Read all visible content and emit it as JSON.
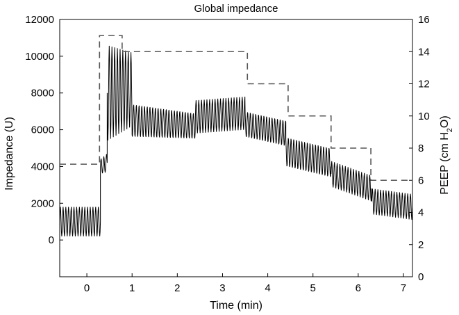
{
  "chart_data": {
    "type": "line",
    "title": "Global impedance",
    "xlabel": "Time (min)",
    "ylabel_left": "Impedance (U)",
    "ylabel_right_parts": {
      "prefix": "PEEP (cm H",
      "subscript": "2",
      "suffix": "O)"
    },
    "xlim": [
      -0.6,
      7.2
    ],
    "ylim_left": [
      -2000,
      12000
    ],
    "ylim_right": [
      0,
      16
    ],
    "x_ticks": [
      0,
      1,
      2,
      3,
      4,
      5,
      6,
      7
    ],
    "x_tick_labels": [
      "0",
      "1",
      "2",
      "3",
      "4",
      "5",
      "6",
      "7"
    ],
    "y_left_ticks": [
      0,
      2000,
      4000,
      6000,
      8000,
      10000,
      12000
    ],
    "y_left_tick_labels": [
      "0",
      "2000",
      "4000",
      "6000",
      "8000",
      "10000",
      "12000"
    ],
    "y_right_ticks": [
      0,
      2,
      4,
      6,
      8,
      10,
      12,
      14,
      16
    ],
    "y_right_tick_labels": [
      "0",
      "2",
      "4",
      "6",
      "8",
      "10",
      "12",
      "14",
      "16"
    ],
    "grid": false,
    "series": [
      {
        "name": "Global impedance",
        "axis": "left",
        "style": "solid",
        "color": "#000000",
        "oscillation_period_min": 0.06,
        "segments": [
          {
            "t_start": -0.6,
            "t_end": 0.3,
            "base_start": 1000,
            "base_end": 1000,
            "amp_start": 800,
            "amp_end": 800
          },
          {
            "t_start": 0.3,
            "t_end": 0.45,
            "base_start": 4000,
            "base_end": 4200,
            "amp_start": 400,
            "amp_end": 500
          },
          {
            "t_start": 0.45,
            "t_end": 1.0,
            "base_start": 8000,
            "base_end": 8200,
            "amp_start": 2600,
            "amp_end": 2000
          },
          {
            "t_start": 1.0,
            "t_end": 2.4,
            "base_start": 6500,
            "base_end": 6200,
            "amp_start": 900,
            "amp_end": 700
          },
          {
            "t_start": 2.4,
            "t_end": 3.5,
            "base_start": 6700,
            "base_end": 6900,
            "amp_start": 900,
            "amp_end": 900
          },
          {
            "t_start": 3.5,
            "t_end": 4.4,
            "base_start": 6300,
            "base_end": 5800,
            "amp_start": 700,
            "amp_end": 700
          },
          {
            "t_start": 4.4,
            "t_end": 5.4,
            "base_start": 4800,
            "base_end": 4200,
            "amp_start": 800,
            "amp_end": 800
          },
          {
            "t_start": 5.4,
            "t_end": 6.3,
            "base_start": 3600,
            "base_end": 2800,
            "amp_start": 700,
            "amp_end": 700
          },
          {
            "t_start": 6.3,
            "t_end": 7.2,
            "base_start": 2100,
            "base_end": 1800,
            "amp_start": 700,
            "amp_end": 700
          }
        ]
      },
      {
        "name": "PEEP",
        "axis": "right",
        "style": "dashed",
        "color": "#555555",
        "step_points": [
          {
            "x": -0.6,
            "y": 7
          },
          {
            "x": 0.28,
            "y": 7
          },
          {
            "x": 0.28,
            "y": 15
          },
          {
            "x": 0.78,
            "y": 15
          },
          {
            "x": 0.78,
            "y": 14
          },
          {
            "x": 3.55,
            "y": 14
          },
          {
            "x": 3.55,
            "y": 12
          },
          {
            "x": 4.45,
            "y": 12
          },
          {
            "x": 4.45,
            "y": 10
          },
          {
            "x": 5.4,
            "y": 10
          },
          {
            "x": 5.4,
            "y": 8
          },
          {
            "x": 6.28,
            "y": 8
          },
          {
            "x": 6.28,
            "y": 6
          },
          {
            "x": 7.2,
            "y": 6
          }
        ]
      }
    ]
  }
}
